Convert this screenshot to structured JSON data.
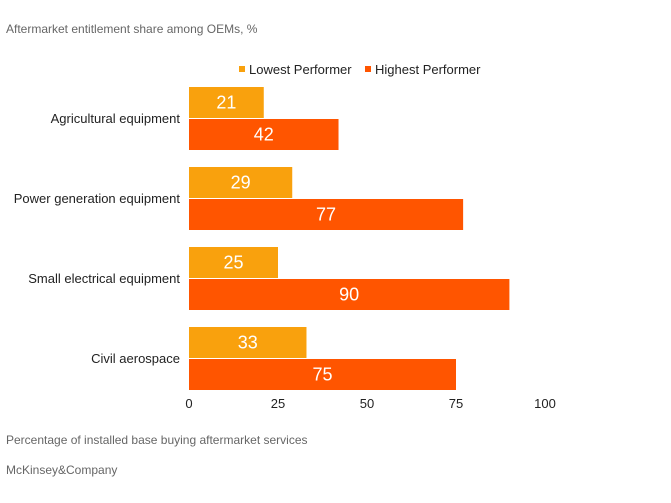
{
  "header": {
    "subtitle": "Aftermarket entitlement share among OEMs, %"
  },
  "footer": {
    "source": "McKinsey&Company"
  },
  "chart_data": {
    "type": "bar",
    "orientation": "horizontal",
    "categories": [
      "Agricultural equipment",
      "Power generation equipment",
      "Small electrical equipment",
      "Civil aerospace"
    ],
    "series": [
      {
        "name": "Lowest Performer",
        "color": "#F9A10D",
        "values": [
          21,
          29,
          25,
          33
        ]
      },
      {
        "name": "Highest Performer",
        "color": "#FF5500",
        "values": [
          42,
          77,
          90,
          75
        ]
      }
    ],
    "xlabel": "Percentage of installed base buying aftermarket services",
    "xlim": [
      0,
      100
    ],
    "xticks": [
      0,
      25,
      50,
      75,
      100
    ],
    "legend_position": "top",
    "grid": false
  }
}
